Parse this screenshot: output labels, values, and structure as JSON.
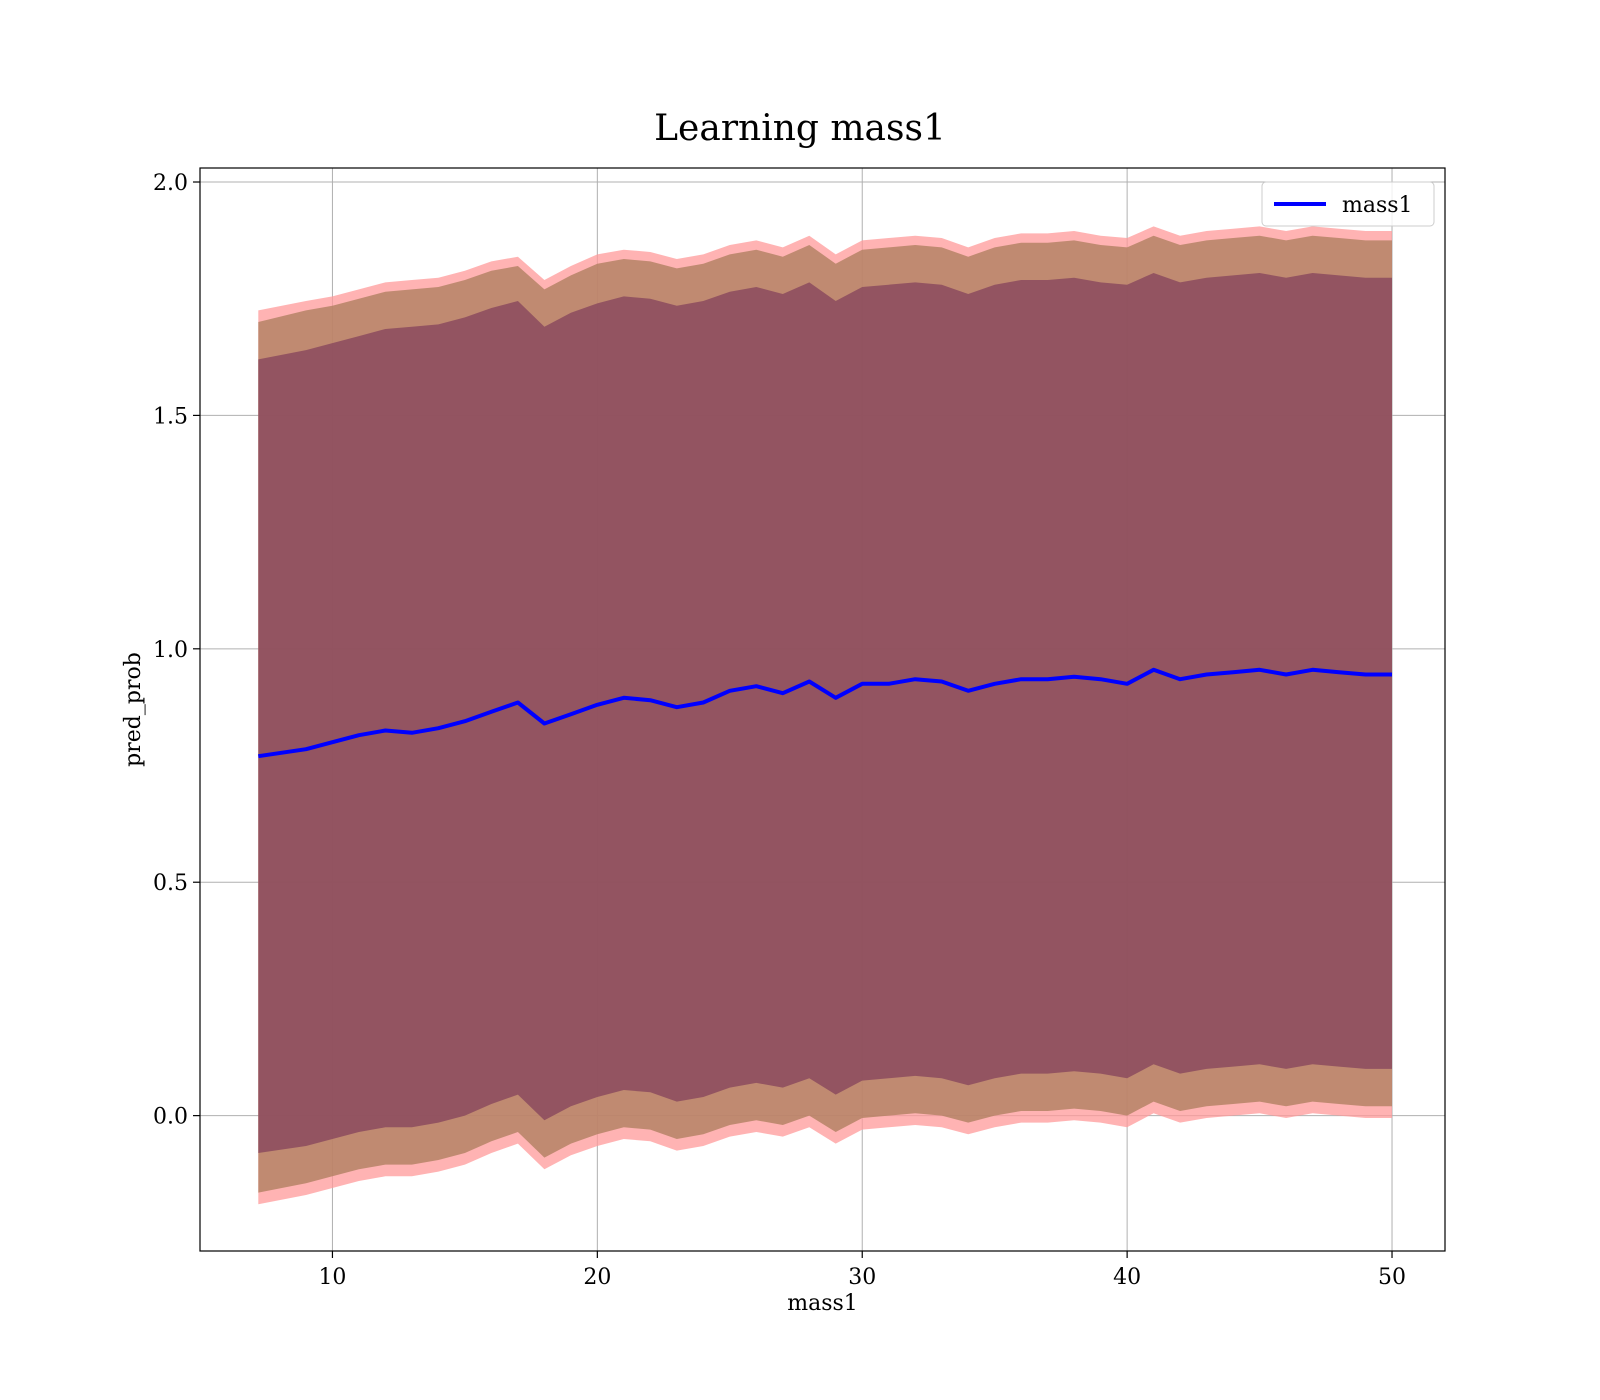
{
  "chart_data": {
    "type": "line",
    "title": "Learning mass1",
    "xlabel": "mass1",
    "ylabel": "pred_prob",
    "xlim": [
      5,
      52
    ],
    "ylim": [
      -0.29,
      2.03
    ],
    "xticks": [
      10,
      20,
      30,
      40,
      50
    ],
    "yticks": [
      0.0,
      0.5,
      1.0,
      1.5,
      2.0
    ],
    "xtick_labels": [
      "10",
      "20",
      "30",
      "40",
      "50"
    ],
    "ytick_labels": [
      "0.0",
      "0.5",
      "1.0",
      "1.5",
      "2.0"
    ],
    "grid": true,
    "legend_position": "top-right",
    "line_color": "#0000ff",
    "series": [
      {
        "name": "mass1",
        "x": [
          7.2,
          9,
          10,
          11,
          12,
          13,
          14,
          15,
          16,
          17,
          18,
          19,
          20,
          21,
          22,
          23,
          24,
          25,
          26,
          27,
          28,
          29,
          30,
          31,
          32,
          33,
          34,
          35,
          36,
          37,
          38,
          39,
          40,
          41,
          42,
          43,
          44,
          45,
          46,
          47,
          48,
          49,
          50
        ],
        "y": [
          0.77,
          0.785,
          0.8,
          0.815,
          0.825,
          0.82,
          0.83,
          0.845,
          0.865,
          0.885,
          0.84,
          0.86,
          0.88,
          0.895,
          0.89,
          0.875,
          0.885,
          0.91,
          0.92,
          0.905,
          0.93,
          0.895,
          0.925,
          0.925,
          0.935,
          0.93,
          0.91,
          0.925,
          0.935,
          0.935,
          0.94,
          0.935,
          0.925,
          0.955,
          0.935,
          0.945,
          0.95,
          0.955,
          0.945,
          0.955,
          0.95,
          0.945,
          0.945
        ]
      }
    ],
    "bands": [
      {
        "color": "#ff9999",
        "opacity": 0.75,
        "upper": [
          1.725,
          1.745,
          1.755,
          1.77,
          1.785,
          1.79,
          1.795,
          1.81,
          1.83,
          1.84,
          1.79,
          1.82,
          1.845,
          1.855,
          1.85,
          1.835,
          1.845,
          1.865,
          1.875,
          1.86,
          1.885,
          1.845,
          1.875,
          1.88,
          1.885,
          1.88,
          1.86,
          1.88,
          1.89,
          1.89,
          1.895,
          1.885,
          1.88,
          1.905,
          1.885,
          1.895,
          1.9,
          1.905,
          1.895,
          1.905,
          1.9,
          1.895,
          1.895
        ],
        "lower": [
          -0.19,
          -0.17,
          -0.155,
          -0.14,
          -0.13,
          -0.13,
          -0.12,
          -0.105,
          -0.08,
          -0.06,
          -0.115,
          -0.085,
          -0.065,
          -0.05,
          -0.055,
          -0.075,
          -0.065,
          -0.045,
          -0.035,
          -0.045,
          -0.025,
          -0.06,
          -0.03,
          -0.025,
          -0.02,
          -0.025,
          -0.04,
          -0.025,
          -0.015,
          -0.015,
          -0.01,
          -0.015,
          -0.025,
          0.005,
          -0.015,
          -0.005,
          0.0,
          0.005,
          -0.005,
          0.005,
          0.0,
          -0.005,
          -0.005
        ]
      },
      {
        "color": "#b08060",
        "opacity": 0.8,
        "upper": [
          1.7,
          1.725,
          1.735,
          1.75,
          1.765,
          1.77,
          1.775,
          1.79,
          1.81,
          1.82,
          1.77,
          1.8,
          1.825,
          1.835,
          1.83,
          1.815,
          1.825,
          1.845,
          1.855,
          1.84,
          1.865,
          1.825,
          1.855,
          1.86,
          1.865,
          1.86,
          1.84,
          1.86,
          1.87,
          1.87,
          1.875,
          1.865,
          1.86,
          1.885,
          1.865,
          1.875,
          1.88,
          1.885,
          1.875,
          1.885,
          1.88,
          1.875,
          1.875
        ],
        "lower": [
          -0.165,
          -0.145,
          -0.13,
          -0.115,
          -0.105,
          -0.105,
          -0.095,
          -0.08,
          -0.055,
          -0.035,
          -0.09,
          -0.06,
          -0.04,
          -0.025,
          -0.03,
          -0.05,
          -0.04,
          -0.02,
          -0.01,
          -0.02,
          0.0,
          -0.035,
          -0.005,
          0.0,
          0.005,
          0.0,
          -0.015,
          0.0,
          0.01,
          0.01,
          0.015,
          0.01,
          0.0,
          0.03,
          0.01,
          0.02,
          0.025,
          0.03,
          0.02,
          0.03,
          0.025,
          0.02,
          0.02
        ]
      },
      {
        "color": "#8b4a5e",
        "opacity": 0.85,
        "upper": [
          1.62,
          1.64,
          1.655,
          1.67,
          1.685,
          1.69,
          1.695,
          1.71,
          1.73,
          1.745,
          1.69,
          1.72,
          1.74,
          1.755,
          1.75,
          1.735,
          1.745,
          1.765,
          1.775,
          1.76,
          1.785,
          1.745,
          1.775,
          1.78,
          1.785,
          1.78,
          1.76,
          1.78,
          1.79,
          1.79,
          1.795,
          1.785,
          1.78,
          1.805,
          1.785,
          1.795,
          1.8,
          1.805,
          1.795,
          1.805,
          1.8,
          1.795,
          1.795
        ],
        "lower": [
          -0.08,
          -0.065,
          -0.05,
          -0.035,
          -0.025,
          -0.025,
          -0.015,
          0.0,
          0.025,
          0.045,
          -0.01,
          0.02,
          0.04,
          0.055,
          0.05,
          0.03,
          0.04,
          0.06,
          0.07,
          0.06,
          0.08,
          0.045,
          0.075,
          0.08,
          0.085,
          0.08,
          0.065,
          0.08,
          0.09,
          0.09,
          0.095,
          0.09,
          0.08,
          0.11,
          0.09,
          0.1,
          0.105,
          0.11,
          0.1,
          0.11,
          0.105,
          0.1,
          0.1
        ]
      }
    ]
  }
}
